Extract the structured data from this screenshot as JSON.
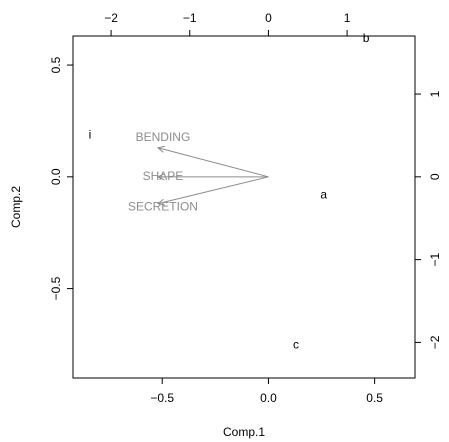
{
  "chart_data": {
    "type": "biplot",
    "xlabel": "Comp.1",
    "ylabel": "Comp.2",
    "grid": false,
    "primary_axes": {
      "xlim": [
        -0.92,
        0.69
      ],
      "ylim": [
        -0.9,
        0.63
      ],
      "xticks": [
        -0.5,
        0.0,
        0.5
      ],
      "xtick_labels": [
        "−0.5",
        "0.0",
        "0.5"
      ],
      "yticks": [
        -0.5,
        0.0,
        0.5
      ],
      "ytick_labels": [
        "−0.5",
        "0.0",
        "0.5"
      ]
    },
    "secondary_axes": {
      "xticks": [
        -2,
        -1,
        0,
        1
      ],
      "xtick_labels": [
        "−2",
        "−1",
        "0",
        "1"
      ],
      "yticks": [
        -2,
        -1,
        0,
        1
      ],
      "ytick_labels": [
        "−2",
        "−1",
        "0",
        "1"
      ],
      "scale": 2.7
    },
    "points": [
      {
        "label": "b",
        "x": 0.46,
        "y": 0.62
      },
      {
        "label": "i",
        "x": -0.84,
        "y": 0.19
      },
      {
        "label": "a",
        "x": 0.26,
        "y": -0.08
      },
      {
        "label": "c",
        "x": 0.13,
        "y": -0.75
      }
    ],
    "arrows": [
      {
        "label": "BENDING",
        "x": -0.52,
        "y": 0.13
      },
      {
        "label": "SHAPE",
        "x": -0.52,
        "y": 0.0
      },
      {
        "label": "SECRETION",
        "x": -0.52,
        "y": -0.12
      }
    ],
    "colors": {
      "points": "#000000",
      "arrows": "#8c8c8c",
      "axes": "#000000"
    }
  }
}
